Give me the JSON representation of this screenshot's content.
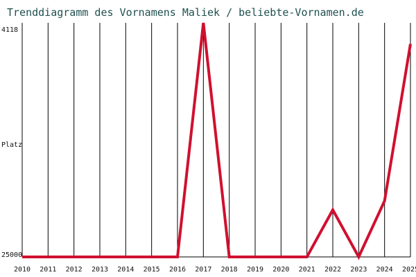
{
  "chart_data": {
    "type": "line",
    "title": "Trenddiagramm des Vornamens Maliek / beliebte-Vornamen.de",
    "xlabel": "",
    "ylabel": "Platz",
    "x": [
      2010,
      2011,
      2012,
      2013,
      2014,
      2015,
      2016,
      2017,
      2018,
      2019,
      2020,
      2021,
      2022,
      2023,
      2024,
      2025
    ],
    "y": [
      25000,
      25000,
      25000,
      25000,
      25000,
      25000,
      25000,
      4118,
      25000,
      25000,
      25000,
      25000,
      20800,
      25000,
      20000,
      6000
    ],
    "ylim": [
      25000,
      4118
    ],
    "yticks": [
      "4118",
      "25000"
    ],
    "grid": "vertical",
    "color": "#d0102f"
  }
}
